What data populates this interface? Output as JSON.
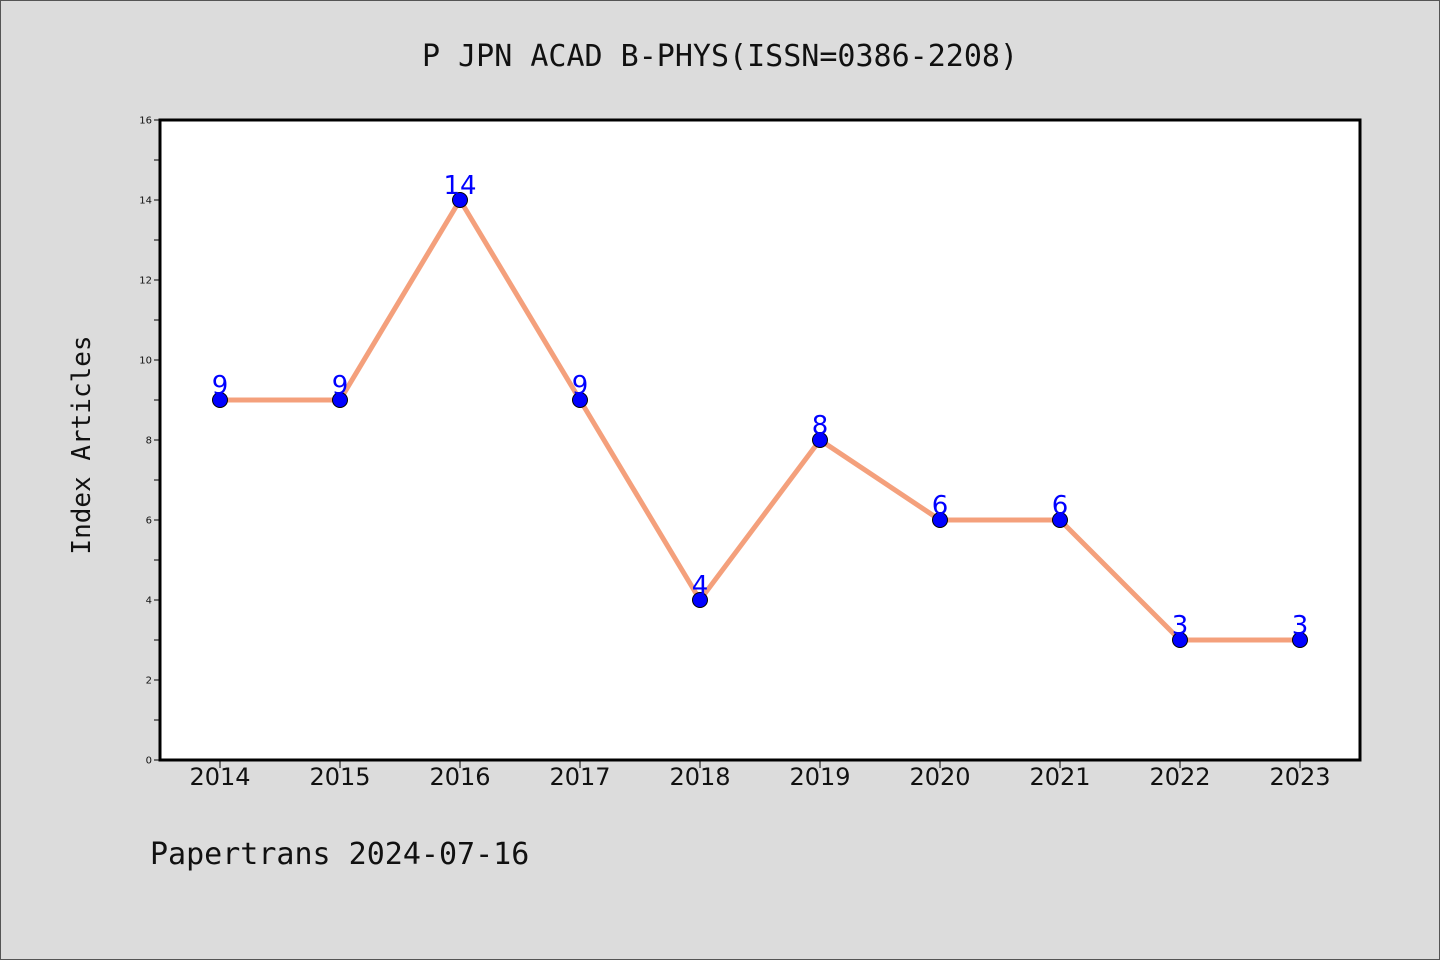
{
  "chart_data": {
    "type": "line",
    "title": "P JPN ACAD B-PHYS(ISSN=0386-2208)",
    "ylabel": "Index Articles",
    "xlabel": "",
    "categories": [
      "2014",
      "2015",
      "2016",
      "2017",
      "2018",
      "2019",
      "2020",
      "2021",
      "2022",
      "2023"
    ],
    "values": [
      9,
      9,
      14,
      9,
      4,
      8,
      6,
      6,
      3,
      3
    ],
    "ylim": [
      0,
      16
    ],
    "yticks": [
      0,
      2,
      4,
      6,
      8,
      10,
      12,
      14,
      16
    ],
    "yminor_step": 1,
    "grid": false,
    "line_color": "#f4a07c",
    "marker_color": "#0000ff",
    "data_label_color": "#0000ff",
    "footer": "Papertrans 2024-07-16"
  },
  "colors": {
    "background": "#dcdcdc",
    "plot_area": "#ffffff"
  }
}
